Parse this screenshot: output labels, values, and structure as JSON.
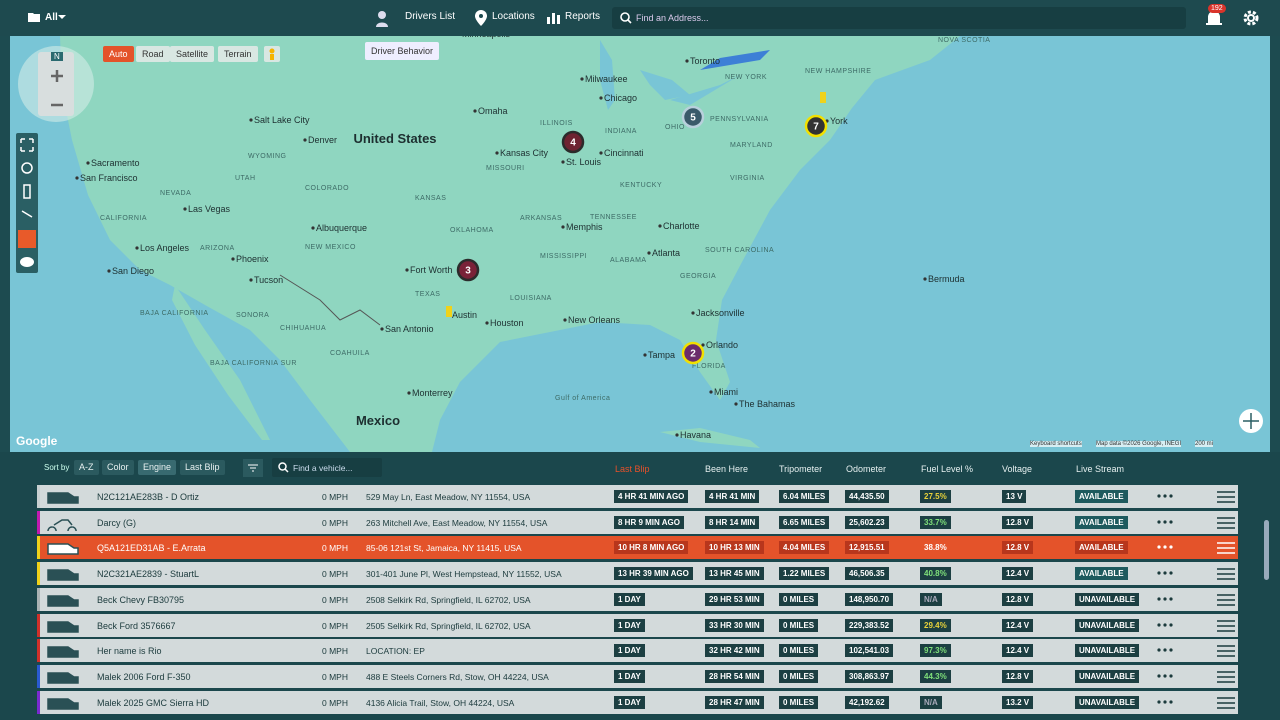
{
  "header": {
    "filter": "All",
    "nav": [
      "Drivers List",
      "Locations",
      "Reports"
    ],
    "tooltip": "Driver Behavior",
    "search_placeholder": "Find an Address...",
    "notifications": "192"
  },
  "map": {
    "compass": "N",
    "map_types": [
      "Auto",
      "Road",
      "Satellite",
      "Terrain"
    ],
    "countries": [
      "United States",
      "Mexico"
    ],
    "places": [
      "Chicago",
      "Toronto",
      "York",
      "Kansas City",
      "St. Louis",
      "Cincinnati",
      "Denver",
      "Salt Lake City",
      "Sacramento",
      "San Francisco",
      "Las Vegas",
      "Los Angeles",
      "San Diego",
      "Phoenix",
      "Tucson",
      "Albuquerque",
      "Fort Worth",
      "Austin",
      "Houston",
      "San Antonio",
      "Memphis",
      "Atlanta",
      "Charlotte",
      "Jacksonville",
      "Orlando",
      "Tampa",
      "Miami",
      "The Bahamas",
      "Havana",
      "New Orleans",
      "Monterrey",
      "Omaha",
      "Bermuda",
      "Minneapolis",
      "Milwaukee"
    ],
    "regions": [
      "NEVADA",
      "UTAH",
      "COLORADO",
      "KANSAS",
      "OKLAHOMA",
      "TEXAS",
      "NEW MEXICO",
      "ARIZONA",
      "CALIFORNIA",
      "ILLINOIS",
      "INDIANA",
      "OHIO",
      "KENTUCKY",
      "TENNESSEE",
      "GEORGIA",
      "ALABAMA",
      "MISSISSIPPI",
      "LOUISIANA",
      "FLORIDA",
      "PENNSYLVANIA",
      "NEW YORK",
      "VIRGINIA",
      "MARYLAND",
      "NOVA SCOTIA",
      "MISSOURI",
      "ARKANSAS",
      "SONORA",
      "CHIHUAHUA",
      "COAHUILA",
      "BAJA CALIFORNIA",
      "BAJA CALIFORNIA SUR",
      "WYOMING",
      "NEW HAMPSHIRE",
      "SOUTH CAROLINA",
      "Gulf of America"
    ],
    "clusters": [
      "4",
      "5",
      "7",
      "3",
      "2"
    ],
    "footer": [
      "Google",
      "Keyboard shortcuts",
      "Map data ©2026 Google, INEGI",
      "200 mi"
    ]
  },
  "table": {
    "sort_label": "Sort by",
    "sort_options": [
      "A-Z",
      "Color",
      "Engine",
      "Last Blip"
    ],
    "search_placeholder": "Find a vehicle...",
    "columns": [
      "Last Blip",
      "Been Here",
      "Tripometer",
      "Odometer",
      "Fuel Level %",
      "Voltage",
      "Live Stream"
    ],
    "rows": [
      [
        "N2C121AE283B - D Ortiz",
        "0 MPH",
        "529 May Ln, East Meadow, NY 11554, USA",
        "4 HR 41 MIN AGO",
        "4 HR 41 MIN",
        "6.04 MILES",
        "44,435.50",
        "27.5%",
        "13 V",
        "AVAILABLE"
      ],
      [
        "Darcy (G)",
        "0 MPH",
        "263 Mitchell Ave, East Meadow, NY 11554, USA",
        "8 HR 9 MIN AGO",
        "8 HR 14 MIN",
        "6.65 MILES",
        "25,602.23",
        "33.7%",
        "12.8 V",
        "AVAILABLE"
      ],
      [
        "Q5A121ED31AB - E.Arrata",
        "0 MPH",
        "85-06 121st St, Jamaica, NY 11415, USA",
        "10 HR 8 MIN AGO",
        "10 HR 13 MIN",
        "4.04 MILES",
        "12,915.51",
        "38.8%",
        "12.8 V",
        "AVAILABLE"
      ],
      [
        "N2C321AE2839 - StuartL",
        "0 MPH",
        "301-401 June Pl, West Hempstead, NY 11552, USA",
        "13 HR 39 MIN AGO",
        "13 HR 45 MIN",
        "1.22 MILES",
        "46,506.35",
        "40.8%",
        "12.4 V",
        "AVAILABLE"
      ],
      [
        "Beck Chevy FB30795",
        "0 MPH",
        "2508 Selkirk Rd, Springfield, IL 62702, USA",
        "1 DAY",
        "29 HR 53 MIN",
        "0 MILES",
        "148,950.70",
        "N/A",
        "12.8 V",
        "UNAVAILABLE"
      ],
      [
        "Beck Ford 3576667",
        "0 MPH",
        "2505 Selkirk Rd, Springfield, IL 62702, USA",
        "1 DAY",
        "33 HR 30 MIN",
        "0 MILES",
        "229,383.52",
        "29.4%",
        "12.4 V",
        "UNAVAILABLE"
      ],
      [
        "Her name is Rio",
        "0 MPH",
        "LOCATION: EP",
        "1 DAY",
        "32 HR 42 MIN",
        "0 MILES",
        "102,541.03",
        "97.3%",
        "12.4 V",
        "UNAVAILABLE"
      ],
      [
        "Malek 2006 Ford F-350",
        "0 MPH",
        "488 E Steels Corners Rd, Stow, OH 44224, USA",
        "1 DAY",
        "28 HR 54 MIN",
        "0 MILES",
        "308,863.97",
        "44.3%",
        "12.8 V",
        "UNAVAILABLE"
      ],
      [
        "Malek 2025 GMC Sierra HD",
        "0 MPH",
        "4136 Alicia Trail, Stow, OH 44224, USA",
        "1 DAY",
        "28 HR 47 MIN",
        "0 MILES",
        "42,192.62",
        "N/A",
        "13.2 V",
        "UNAVAILABLE"
      ]
    ]
  }
}
